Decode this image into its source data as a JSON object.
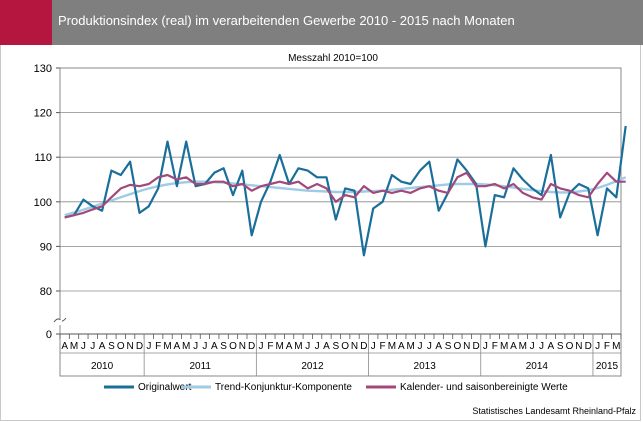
{
  "header": {
    "title": "Produktionsindex (real) im verarbeitenden Gewerbe 2010 - 2015 nach Monaten"
  },
  "source": "Statistisches Landesamt Rheinland-Pfalz",
  "colors": {
    "header_bg": "#7f7f7f",
    "accent": "#b5163f",
    "original": "#1a6f9a",
    "trend": "#9ecbe6",
    "adjusted": "#a3497a"
  },
  "chart_data": {
    "type": "line",
    "subtitle": "Messzahl 2010=100",
    "ylim": [
      0,
      130
    ],
    "axis_break": true,
    "yticks": [
      0,
      80,
      90,
      100,
      110,
      120,
      130
    ],
    "grid": true,
    "legend_position": "bottom",
    "month_labels": [
      "A",
      "M",
      "J",
      "J",
      "A",
      "S",
      "O",
      "N",
      "D",
      "J",
      "F",
      "M",
      "A",
      "M",
      "J",
      "J",
      "A",
      "S",
      "O",
      "N",
      "D",
      "J",
      "F",
      "M",
      "A",
      "M",
      "J",
      "J",
      "A",
      "S",
      "O",
      "N",
      "D",
      "J",
      "F",
      "M",
      "A",
      "M",
      "J",
      "J",
      "A",
      "S",
      "O",
      "N",
      "D",
      "J",
      "F",
      "M",
      "A",
      "M",
      "J",
      "J",
      "A",
      "S",
      "O",
      "N",
      "D",
      "J",
      "F",
      "M"
    ],
    "year_groups": [
      {
        "label": "2010",
        "months": 9
      },
      {
        "label": "2011",
        "months": 12
      },
      {
        "label": "2012",
        "months": 12
      },
      {
        "label": "2013",
        "months": 12
      },
      {
        "label": "2014",
        "months": 12
      },
      {
        "label": "2015",
        "months": 3
      }
    ],
    "series": [
      {
        "name": "Originalwert",
        "values": [
          96.5,
          97.0,
          100.5,
          99.0,
          98.0,
          107.0,
          106.0,
          109.0,
          97.5,
          99.0,
          103.0,
          113.5,
          103.5,
          113.5,
          103.5,
          104.0,
          106.5,
          107.5,
          101.5,
          107.0,
          92.5,
          100.0,
          104.5,
          110.5,
          104.0,
          107.5,
          107.0,
          105.5,
          105.5,
          96.0,
          103.0,
          102.5,
          88.0,
          98.5,
          100.0,
          106.0,
          104.5,
          104.0,
          107.0,
          109.0,
          98.0,
          102.0,
          109.5,
          107.0,
          104.0,
          90.0,
          101.5,
          101.0,
          107.5,
          105.0,
          103.0,
          101.5,
          110.5,
          96.5,
          102.0,
          104.0,
          103.0,
          92.5,
          103.0,
          101.0,
          117.0
        ]
      },
      {
        "name": "Trend-Konjunktur-Komponente",
        "values": [
          97.0,
          97.6,
          98.2,
          98.9,
          99.6,
          100.3,
          101.0,
          101.7,
          102.4,
          103.0,
          103.5,
          103.9,
          104.2,
          104.4,
          104.5,
          104.5,
          104.4,
          104.3,
          104.1,
          103.9,
          103.7,
          103.5,
          103.3,
          103.1,
          102.9,
          102.7,
          102.5,
          102.4,
          102.3,
          102.2,
          102.2,
          102.2,
          102.3,
          102.4,
          102.5,
          102.7,
          102.9,
          103.1,
          103.3,
          103.5,
          103.7,
          103.9,
          104.0,
          104.0,
          104.0,
          103.9,
          103.7,
          103.5,
          103.2,
          102.9,
          102.6,
          102.4,
          102.2,
          102.1,
          102.1,
          102.3,
          102.6,
          103.1,
          103.8,
          104.6,
          105.5
        ]
      },
      {
        "name": "Kalender- und saisonbereinigte Werte",
        "values": [
          96.5,
          97.0,
          97.5,
          98.3,
          99.0,
          101.0,
          103.0,
          103.8,
          103.5,
          104.0,
          105.5,
          106.0,
          105.0,
          105.5,
          104.0,
          104.0,
          104.5,
          104.5,
          103.5,
          104.0,
          102.5,
          103.5,
          104.0,
          104.5,
          104.0,
          104.5,
          103.0,
          104.0,
          103.0,
          100.0,
          101.5,
          101.0,
          103.5,
          102.0,
          102.5,
          102.0,
          102.5,
          102.0,
          103.0,
          103.5,
          102.5,
          102.0,
          105.5,
          106.5,
          103.5,
          103.5,
          104.0,
          103.0,
          104.0,
          102.0,
          101.0,
          100.5,
          104.0,
          103.0,
          102.5,
          101.5,
          101.0,
          104.0,
          106.5,
          104.5,
          104.5
        ]
      }
    ]
  }
}
